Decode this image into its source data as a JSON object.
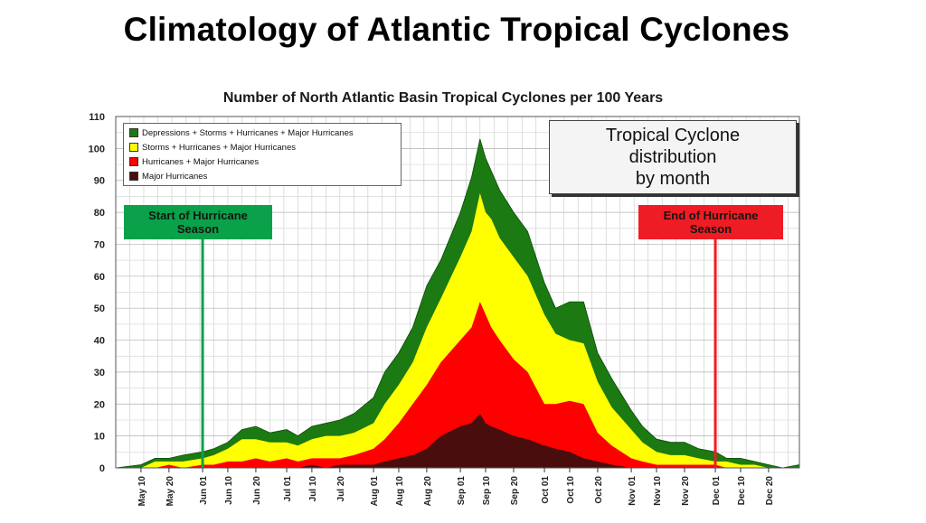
{
  "slide_title": "Climatology of Atlantic Tropical Cyclones",
  "chart_data": {
    "type": "area",
    "title": "Number of North Atlantic Basin Tropical Cyclones per 100 Years",
    "xlabel": "",
    "ylabel": "",
    "ylim": [
      0,
      110
    ],
    "y_ticks": [
      "0",
      "10",
      "20",
      "30",
      "40",
      "50",
      "60",
      "70",
      "80",
      "90",
      "100",
      "110"
    ],
    "x_ticks": [
      "May 10",
      "May 20",
      "Jun 01",
      "Jun 10",
      "Jun 20",
      "Jul 01",
      "Jul 10",
      "Jul 20",
      "Aug 01",
      "Aug 10",
      "Aug 20",
      "Sep 01",
      "Sep 10",
      "Sep 20",
      "Oct 01",
      "Oct 10",
      "Oct 20",
      "Nov 01",
      "Nov 10",
      "Nov 20",
      "Dec 01",
      "Dec 10",
      "Dec 20"
    ],
    "x_start": "May 01",
    "x_end": "Dec 31",
    "grid": true,
    "legend_position": "top-left",
    "series": [
      {
        "name": "Depressions + Storms + Hurricanes + Major Hurricanes",
        "color": "#1b7a12",
        "points": [
          [
            "May 01",
            0
          ],
          [
            "May 10",
            1
          ],
          [
            "May 15",
            3
          ],
          [
            "May 20",
            3
          ],
          [
            "May 25",
            4
          ],
          [
            "Jun 01",
            5
          ],
          [
            "Jun 05",
            6
          ],
          [
            "Jun 10",
            8
          ],
          [
            "Jun 15",
            12
          ],
          [
            "Jun 20",
            13
          ],
          [
            "Jun 25",
            11
          ],
          [
            "Jul 01",
            12
          ],
          [
            "Jul 05",
            10
          ],
          [
            "Jul 10",
            13
          ],
          [
            "Jul 15",
            14
          ],
          [
            "Jul 20",
            15
          ],
          [
            "Jul 25",
            17
          ],
          [
            "Aug 01",
            22
          ],
          [
            "Aug 05",
            30
          ],
          [
            "Aug 10",
            36
          ],
          [
            "Aug 15",
            44
          ],
          [
            "Aug 20",
            57
          ],
          [
            "Aug 25",
            65
          ],
          [
            "Sep 01",
            80
          ],
          [
            "Sep 05",
            91
          ],
          [
            "Sep 08",
            103
          ],
          [
            "Sep 10",
            97
          ],
          [
            "Sep 12",
            93
          ],
          [
            "Sep 15",
            87
          ],
          [
            "Sep 20",
            80
          ],
          [
            "Sep 25",
            74
          ],
          [
            "Oct 01",
            58
          ],
          [
            "Oct 05",
            50
          ],
          [
            "Oct 10",
            52
          ],
          [
            "Oct 15",
            52
          ],
          [
            "Oct 20",
            36
          ],
          [
            "Oct 25",
            28
          ],
          [
            "Nov 01",
            18
          ],
          [
            "Nov 05",
            13
          ],
          [
            "Nov 10",
            9
          ],
          [
            "Nov 15",
            8
          ],
          [
            "Nov 20",
            8
          ],
          [
            "Nov 25",
            6
          ],
          [
            "Dec 01",
            5
          ],
          [
            "Dec 05",
            3
          ],
          [
            "Dec 10",
            3
          ],
          [
            "Dec 15",
            2
          ],
          [
            "Dec 20",
            1
          ],
          [
            "Dec 25",
            0
          ],
          [
            "Dec 31",
            1
          ]
        ]
      },
      {
        "name": "Storms + Hurricanes + Major Hurricanes",
        "color": "#ffff00",
        "points": [
          [
            "May 01",
            0
          ],
          [
            "May 10",
            0
          ],
          [
            "May 15",
            2
          ],
          [
            "May 20",
            2
          ],
          [
            "May 25",
            2
          ],
          [
            "Jun 01",
            3
          ],
          [
            "Jun 05",
            4
          ],
          [
            "Jun 10",
            6
          ],
          [
            "Jun 15",
            9
          ],
          [
            "Jun 20",
            9
          ],
          [
            "Jun 25",
            8
          ],
          [
            "Jul 01",
            8
          ],
          [
            "Jul 05",
            7
          ],
          [
            "Jul 10",
            9
          ],
          [
            "Jul 15",
            10
          ],
          [
            "Jul 20",
            10
          ],
          [
            "Jul 25",
            11
          ],
          [
            "Aug 01",
            14
          ],
          [
            "Aug 05",
            20
          ],
          [
            "Aug 10",
            26
          ],
          [
            "Aug 15",
            33
          ],
          [
            "Aug 20",
            44
          ],
          [
            "Aug 25",
            53
          ],
          [
            "Sep 01",
            66
          ],
          [
            "Sep 05",
            74
          ],
          [
            "Sep 08",
            86
          ],
          [
            "Sep 10",
            80
          ],
          [
            "Sep 12",
            78
          ],
          [
            "Sep 15",
            72
          ],
          [
            "Sep 20",
            66
          ],
          [
            "Sep 25",
            60
          ],
          [
            "Oct 01",
            48
          ],
          [
            "Oct 05",
            42
          ],
          [
            "Oct 10",
            40
          ],
          [
            "Oct 15",
            39
          ],
          [
            "Oct 20",
            27
          ],
          [
            "Oct 25",
            19
          ],
          [
            "Nov 01",
            12
          ],
          [
            "Nov 05",
            8
          ],
          [
            "Nov 10",
            5
          ],
          [
            "Nov 15",
            4
          ],
          [
            "Nov 20",
            4
          ],
          [
            "Nov 25",
            3
          ],
          [
            "Dec 01",
            2
          ],
          [
            "Dec 05",
            2
          ],
          [
            "Dec 10",
            1
          ],
          [
            "Dec 15",
            1
          ],
          [
            "Dec 20",
            0
          ],
          [
            "Dec 25",
            0
          ],
          [
            "Dec 31",
            0
          ]
        ]
      },
      {
        "name": "Hurricanes + Major Hurricanes",
        "color": "#ff0000",
        "points": [
          [
            "May 01",
            0
          ],
          [
            "May 10",
            0
          ],
          [
            "May 15",
            0
          ],
          [
            "May 20",
            1
          ],
          [
            "May 25",
            0
          ],
          [
            "Jun 01",
            1
          ],
          [
            "Jun 05",
            1
          ],
          [
            "Jun 10",
            2
          ],
          [
            "Jun 15",
            2
          ],
          [
            "Jun 20",
            3
          ],
          [
            "Jun 25",
            2
          ],
          [
            "Jul 01",
            3
          ],
          [
            "Jul 05",
            2
          ],
          [
            "Jul 10",
            3
          ],
          [
            "Jul 15",
            3
          ],
          [
            "Jul 20",
            3
          ],
          [
            "Jul 25",
            4
          ],
          [
            "Aug 01",
            6
          ],
          [
            "Aug 05",
            9
          ],
          [
            "Aug 10",
            14
          ],
          [
            "Aug 15",
            20
          ],
          [
            "Aug 20",
            26
          ],
          [
            "Aug 25",
            33
          ],
          [
            "Sep 01",
            40
          ],
          [
            "Sep 05",
            44
          ],
          [
            "Sep 08",
            52
          ],
          [
            "Sep 10",
            48
          ],
          [
            "Sep 12",
            44
          ],
          [
            "Sep 15",
            40
          ],
          [
            "Sep 20",
            34
          ],
          [
            "Sep 25",
            30
          ],
          [
            "Oct 01",
            20
          ],
          [
            "Oct 05",
            20
          ],
          [
            "Oct 10",
            21
          ],
          [
            "Oct 15",
            20
          ],
          [
            "Oct 20",
            11
          ],
          [
            "Oct 25",
            7
          ],
          [
            "Nov 01",
            3
          ],
          [
            "Nov 05",
            2
          ],
          [
            "Nov 10",
            1
          ],
          [
            "Nov 15",
            1
          ],
          [
            "Nov 20",
            1
          ],
          [
            "Nov 25",
            1
          ],
          [
            "Dec 01",
            1
          ],
          [
            "Dec 05",
            0
          ],
          [
            "Dec 10",
            0
          ],
          [
            "Dec 15",
            0
          ],
          [
            "Dec 20",
            0
          ],
          [
            "Dec 25",
            0
          ],
          [
            "Dec 31",
            0
          ]
        ]
      },
      {
        "name": "Major Hurricanes",
        "color": "#4a0d0d",
        "points": [
          [
            "May 01",
            0
          ],
          [
            "May 10",
            0
          ],
          [
            "May 15",
            0
          ],
          [
            "May 20",
            0
          ],
          [
            "May 25",
            0
          ],
          [
            "Jun 01",
            0
          ],
          [
            "Jun 05",
            0
          ],
          [
            "Jun 10",
            0
          ],
          [
            "Jun 15",
            0
          ],
          [
            "Jun 20",
            0
          ],
          [
            "Jun 25",
            0
          ],
          [
            "Jul 01",
            0
          ],
          [
            "Jul 05",
            0
          ],
          [
            "Jul 10",
            1
          ],
          [
            "Jul 15",
            0
          ],
          [
            "Jul 20",
            1
          ],
          [
            "Jul 25",
            1
          ],
          [
            "Aug 01",
            1
          ],
          [
            "Aug 05",
            2
          ],
          [
            "Aug 10",
            3
          ],
          [
            "Aug 15",
            4
          ],
          [
            "Aug 20",
            6
          ],
          [
            "Aug 25",
            10
          ],
          [
            "Sep 01",
            13
          ],
          [
            "Sep 05",
            14
          ],
          [
            "Sep 08",
            17
          ],
          [
            "Sep 10",
            14
          ],
          [
            "Sep 12",
            13
          ],
          [
            "Sep 15",
            12
          ],
          [
            "Sep 20",
            10
          ],
          [
            "Sep 25",
            9
          ],
          [
            "Oct 01",
            7
          ],
          [
            "Oct 05",
            6
          ],
          [
            "Oct 10",
            5
          ],
          [
            "Oct 15",
            3
          ],
          [
            "Oct 20",
            2
          ],
          [
            "Oct 25",
            1
          ],
          [
            "Nov 01",
            0
          ],
          [
            "Nov 05",
            0
          ],
          [
            "Nov 10",
            0
          ],
          [
            "Nov 15",
            0
          ],
          [
            "Nov 20",
            0
          ],
          [
            "Nov 25",
            0
          ],
          [
            "Dec 01",
            0
          ],
          [
            "Dec 05",
            0
          ],
          [
            "Dec 10",
            0
          ],
          [
            "Dec 15",
            0
          ],
          [
            "Dec 20",
            0
          ],
          [
            "Dec 25",
            0
          ],
          [
            "Dec 31",
            0
          ]
        ]
      }
    ],
    "annotations": {
      "distribution_box": [
        "Tropical Cyclone",
        "distribution",
        "by month"
      ],
      "start_marker": {
        "date": "Jun 01",
        "label": [
          "Start of Hurricane",
          "Season"
        ],
        "color": "#0aa14a"
      },
      "end_marker": {
        "date": "Dec 01",
        "label": [
          "End of Hurricane",
          "Season"
        ],
        "color": "#ee1c24"
      }
    }
  }
}
